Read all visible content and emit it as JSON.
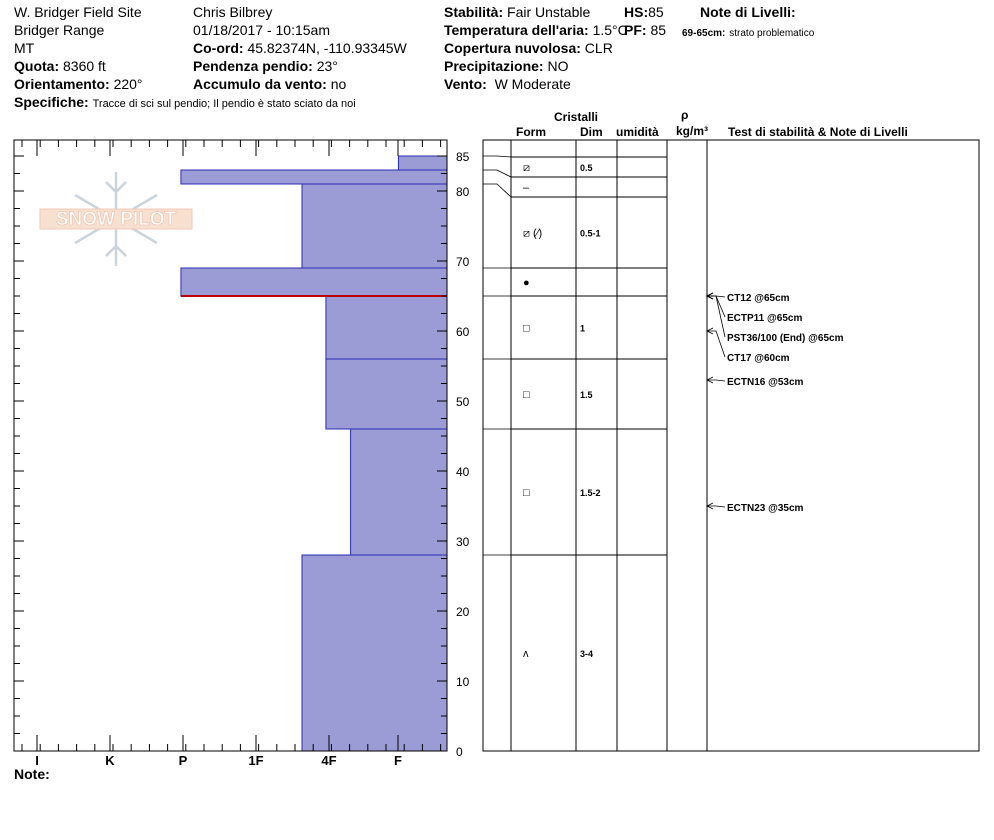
{
  "header": {
    "site": "W. Bridger Field Site",
    "range": "Bridger Range",
    "state": "MT",
    "elevation_label": "Quota:",
    "elevation": "8360 ft",
    "aspect_label": "Orientamento:",
    "aspect": "220°",
    "specifics_label": "Specifiche:",
    "specifics": "Tracce di sci sul pendio;  Il pendio è stato sciato da noi",
    "observer": "Chris Bilbrey",
    "datetime": "01/18/2017 - 10:15am",
    "coord_label": "Co-ord:",
    "coord": "45.82374N, -110.93345W",
    "slope_label": "Pendenza pendio:",
    "slope": "23°",
    "wind_loading_label": "Accumulo da vento:",
    "wind_loading": "no",
    "stability_label": "Stabilità:",
    "stability": "Fair Unstable",
    "air_temp_label": "Temperatura dell'aria:",
    "air_temp": "1.5°C",
    "cloud_label": "Copertura nuvolosa:",
    "cloud": "CLR",
    "precip_label": "Precipitazione:",
    "precip": "NO",
    "wind_label": "Vento:",
    "wind": "W Moderate",
    "hs_label": "HS:",
    "hs": "85",
    "pf_label": "PF:",
    "pf": "85",
    "layer_notes_title": "Note di Livelli:",
    "layer_note_range": "69-65cm:",
    "layer_note_text": "strato problematico"
  },
  "logo_text": "SNOW PILOT",
  "table_headers": {
    "crystals": "Cristalli",
    "form": "Form",
    "size": "Dim",
    "humidity": "umidità",
    "rho": "ρ",
    "density_unit": "kg/m³",
    "tests": "Test di stabilità & Note di Livelli"
  },
  "footer": {
    "note_label": "Note:"
  },
  "chart_data": {
    "type": "bar",
    "description_title": "",
    "hardness_axis": [
      "I",
      "K",
      "P",
      "1F",
      "4F",
      "F"
    ],
    "height_axis": {
      "min": 0,
      "max": 85,
      "ticks": [
        0,
        10,
        20,
        30,
        40,
        50,
        60,
        70,
        80,
        85
      ]
    },
    "layers": [
      {
        "top": 85,
        "bottom": 83,
        "hardness": 0.67
      },
      {
        "top": 83,
        "bottom": 81,
        "hardness": 3.67
      },
      {
        "top": 81,
        "bottom": 69,
        "hardness": 2.0
      },
      {
        "top": 69,
        "bottom": 65,
        "hardness": 3.67
      },
      {
        "top": 65,
        "bottom": 56,
        "hardness": 1.67
      },
      {
        "top": 56,
        "bottom": 46,
        "hardness": 1.67
      },
      {
        "top": 46,
        "bottom": 28,
        "hardness": 1.33
      },
      {
        "top": 28,
        "bottom": 0,
        "hardness": 2.0
      }
    ],
    "red_line_height": 65,
    "crystal_rows": [
      {
        "top": 85,
        "bottom": 83,
        "form": "⧄",
        "size": "0.5"
      },
      {
        "top": 83,
        "bottom": 81,
        "form": "–",
        "size": ""
      },
      {
        "top": 81,
        "bottom": 69,
        "form": "⧄ (⁄)",
        "size": "0.5-1"
      },
      {
        "top": 69,
        "bottom": 65,
        "form": "●",
        "size": ""
      },
      {
        "top": 65,
        "bottom": 56,
        "form": "□",
        "size": "1"
      },
      {
        "top": 56,
        "bottom": 46,
        "form": "□",
        "size": "1.5"
      },
      {
        "top": 46,
        "bottom": 28,
        "form": "□",
        "size": "1.5-2"
      },
      {
        "top": 28,
        "bottom": 0,
        "form": "ʌ",
        "size": "3-4"
      }
    ],
    "tests": [
      {
        "label": "CT12 @65cm",
        "height": 65
      },
      {
        "label": "ECTP11 @65cm",
        "height": 65
      },
      {
        "label": "PST36/100 (End) @65cm",
        "height": 65
      },
      {
        "label": "CT17 @60cm",
        "height": 60
      },
      {
        "label": "ECTN16 @53cm",
        "height": 53
      },
      {
        "label": "ECTN23 @35cm",
        "height": 35
      }
    ]
  }
}
